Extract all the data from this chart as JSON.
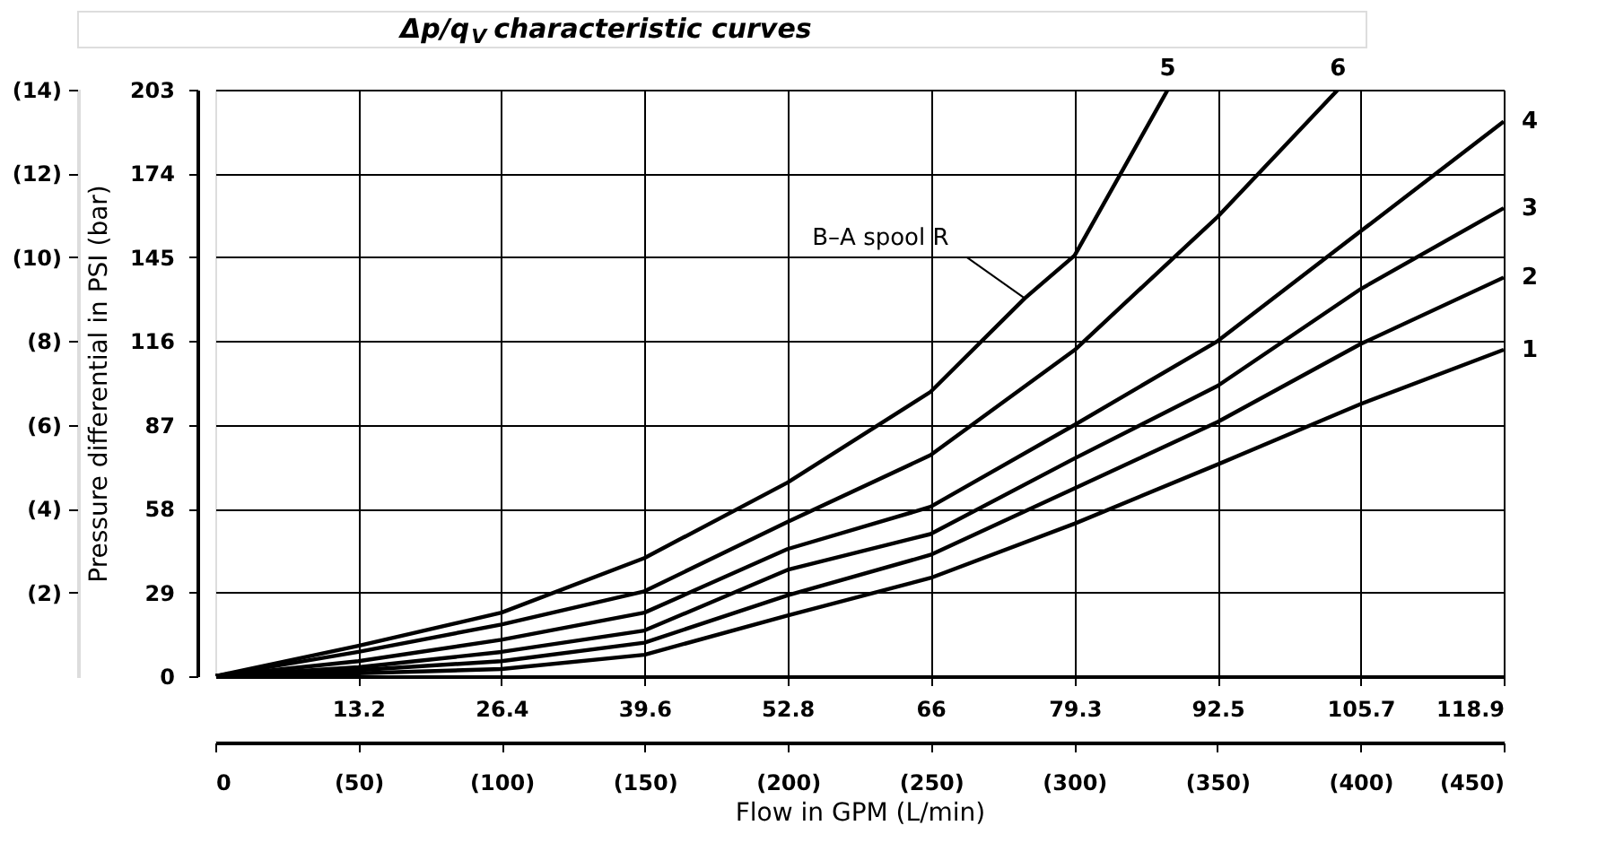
{
  "chart_data": {
    "type": "line",
    "title": "Δp/q$_{V}$ characteristic curves",
    "xlabel": "Flow in GPM (L/min)",
    "ylabel": "Pressure differential in PSI (bar)",
    "xlim": [
      0,
      118.9
    ],
    "xticks": [
      13.2,
      26.4,
      39.6,
      52.8,
      66,
      79.3,
      92.5,
      105.7,
      118.9
    ],
    "ylim": [
      0,
      203
    ],
    "yticks": [
      0,
      29,
      58,
      87,
      116,
      145,
      174,
      203
    ],
    "x2lim": [
      0,
      450
    ],
    "x2ticks": [
      0,
      {
        "value": 50,
        "label": "(50)"
      },
      {
        "value": 100,
        "label": "(100)"
      },
      {
        "value": 150,
        "label": "(150)"
      },
      {
        "value": 200,
        "label": "(200)"
      },
      {
        "value": 250,
        "label": "(250)"
      },
      {
        "value": 300,
        "label": "(300)"
      },
      {
        "value": 350,
        "label": "(350)"
      },
      {
        "value": 400,
        "label": "(400)"
      },
      {
        "value": 450,
        "label": "(450)"
      }
    ],
    "y2lim": [
      0,
      14
    ],
    "y2ticks": [
      {
        "value": 2,
        "label": "(2)"
      },
      {
        "value": 4,
        "label": "(4)"
      },
      {
        "value": 6,
        "label": "(6)"
      },
      {
        "value": 8,
        "label": "(8)"
      },
      {
        "value": 10,
        "label": "(10)"
      },
      {
        "value": 12,
        "label": "(12)"
      },
      {
        "value": 14,
        "label": "(14)"
      }
    ],
    "grid": true,
    "legend": false,
    "marker": "none",
    "line_style": "solid",
    "annotations": [
      {
        "text": "B–A spool R",
        "x": 74.7,
        "y": 130.8
      }
    ],
    "series": [
      {
        "name": "1",
        "color": "#000000",
        "x": [
          0,
          13.2,
          26.4,
          39.6,
          52.8,
          66,
          79.3,
          92.5,
          105.7,
          118.9
        ],
        "values": [
          0,
          1,
          2.5,
          7.4,
          21,
          34,
          52.8,
          73.3,
          94.2,
          113
        ]
      },
      {
        "name": "2",
        "color": "#000000",
        "x": [
          0,
          13.2,
          26.4,
          39.6,
          52.8,
          66,
          79.3,
          92.5,
          105.7,
          118.9
        ],
        "values": [
          0,
          2.1,
          5.2,
          11.6,
          28,
          42,
          65,
          88,
          115,
          138
        ]
      },
      {
        "name": "3",
        "color": "#000000",
        "x": [
          0,
          13.2,
          26.4,
          39.6,
          52.8,
          66,
          79.3,
          92.5,
          105.7,
          118.9
        ],
        "values": [
          0,
          3.1,
          8.4,
          15.8,
          36.8,
          49.2,
          75.4,
          100.5,
          134,
          162
        ]
      },
      {
        "name": "4",
        "color": "#000000",
        "x": [
          0,
          13.2,
          26.4,
          39.6,
          52.8,
          66,
          79.3,
          92.5,
          105.7,
          118.9
        ],
        "values": [
          0,
          5.2,
          12.6,
          22,
          44,
          58.6,
          87,
          116,
          154,
          192
        ]
      },
      {
        "name": "5",
        "color": "#000000",
        "x": [
          0,
          13.2,
          26.4,
          39.6,
          52.8,
          66,
          74.7,
          79.3,
          87.9
        ],
        "values": [
          0,
          10.5,
          22,
          40.9,
          67,
          98.4,
          130.8,
          145.6,
          203
        ]
      },
      {
        "name": "6",
        "color": "#000000",
        "x": [
          0,
          13.2,
          26.4,
          39.6,
          52.8,
          66,
          79.3,
          92.5,
          103.6
        ],
        "values": [
          0,
          8.4,
          17.9,
          29.4,
          53.4,
          76.5,
          112.9,
          159,
          203
        ]
      }
    ]
  }
}
